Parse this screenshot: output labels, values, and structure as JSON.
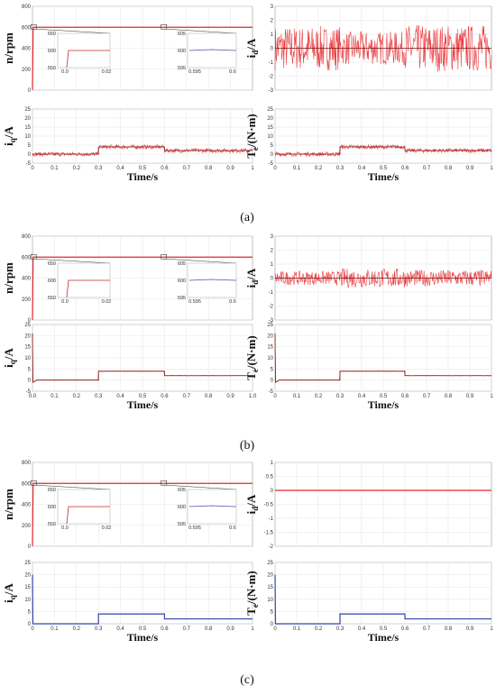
{
  "captions": [
    "(a)",
    "(b)",
    "(c)"
  ],
  "chart_data": [
    {
      "type": "line",
      "ylabel": "n/rpm",
      "xlabel": "",
      "xlim": [
        0,
        1
      ],
      "ylim": [
        0,
        800
      ],
      "yticks": [
        0,
        200,
        400,
        600,
        800
      ],
      "xticks": [],
      "grid": true,
      "series": [
        {
          "color": "#e8262a",
          "x": [
            0,
            0.003,
            0.01,
            1.0
          ],
          "y": [
            0,
            600,
            600,
            600
          ]
        }
      ],
      "insets": [
        {
          "ylim": [
            550,
            650
          ],
          "yticks": [
            550,
            600,
            650
          ],
          "xticks": [
            "0.0",
            "0.02"
          ],
          "y": 600
        },
        {
          "ylim": [
            595,
            605
          ],
          "yticks": [
            595,
            600,
            605
          ],
          "xticks": [
            "0.595",
            "0.6"
          ],
          "y": 600
        }
      ]
    },
    {
      "type": "line",
      "ylabel": "id/A",
      "xlabel": "",
      "xlim": [
        0,
        1
      ],
      "ylim": [
        -3,
        3
      ],
      "yticks": [
        -3,
        -2,
        -1,
        0,
        1,
        2,
        3
      ],
      "xticks": [],
      "grid": true,
      "series": [
        {
          "color": "#e8262a",
          "x": [
            0,
            0.3,
            0.3,
            0.6,
            0.6,
            1
          ],
          "y": [
            0,
            0,
            0,
            0,
            0,
            0
          ],
          "noise": [
            1.6,
            1.6,
            1.2,
            1.2,
            1.7,
            1.7
          ]
        }
      ]
    },
    {
      "type": "line",
      "ylabel": "iq/A",
      "xlabel": "Time/s",
      "xlim": [
        0,
        1
      ],
      "ylim": [
        -5,
        25
      ],
      "yticks": [
        -5,
        0,
        5,
        10,
        15,
        20,
        25
      ],
      "xticks": [
        0,
        0.1,
        0.2,
        0.3,
        0.4,
        0.5,
        0.6,
        0.7,
        0.8,
        0.9,
        1
      ],
      "grid": true,
      "series": [
        {
          "color": "#e8262a",
          "x": [
            0,
            0.3,
            0.3,
            0.6,
            0.6,
            1
          ],
          "y": [
            0,
            0,
            4,
            4,
            2,
            2
          ],
          "noise": [
            1.2,
            1.2,
            1.2,
            1.2,
            1.2,
            1.2
          ]
        }
      ]
    },
    {
      "type": "line",
      "ylabel": "Te/(N·m)",
      "xlabel": "Time/s",
      "xlim": [
        0,
        1
      ],
      "ylim": [
        -5,
        25
      ],
      "yticks": [
        -5,
        0,
        5,
        10,
        15,
        20,
        25
      ],
      "xticks": [
        0,
        0.1,
        0.2,
        0.3,
        0.4,
        0.5,
        0.6,
        0.7,
        0.8,
        0.9,
        1
      ],
      "grid": true,
      "series": [
        {
          "color": "#e8262a",
          "x": [
            0,
            0.3,
            0.3,
            0.6,
            0.6,
            1
          ],
          "y": [
            0,
            0,
            4,
            4,
            2,
            2
          ],
          "noise": [
            1.2,
            1.2,
            1.2,
            1.2,
            1.2,
            1.2
          ]
        }
      ]
    },
    {
      "type": "line",
      "ylabel": "n/rpm",
      "xlabel": "",
      "xlim": [
        0,
        1
      ],
      "ylim": [
        0,
        800
      ],
      "yticks": [
        0,
        200,
        400,
        600,
        800
      ],
      "xticks": [],
      "grid": true,
      "series": [
        {
          "color": "#e8262a",
          "x": [
            0,
            0.003,
            0.01,
            1.0
          ],
          "y": [
            0,
            600,
            600,
            600
          ]
        }
      ],
      "insets": [
        {
          "ylim": [
            550,
            650
          ],
          "yticks": [
            550,
            600,
            650
          ],
          "xticks": [
            "0.0",
            "0.02"
          ],
          "y": 600
        },
        {
          "ylim": [
            595,
            605
          ],
          "yticks": [
            595,
            600,
            605
          ],
          "xticks": [
            "0.595",
            "0.6"
          ],
          "y": 600
        }
      ]
    },
    {
      "type": "line",
      "ylabel": "id/A",
      "xlabel": "",
      "xlim": [
        0,
        1
      ],
      "ylim": [
        -3,
        3
      ],
      "yticks": [
        -3,
        -2,
        -1,
        0,
        1,
        2,
        3
      ],
      "xticks": [],
      "grid": true,
      "series": [
        {
          "color": "#e8262a",
          "x": [
            0,
            0.3,
            0.3,
            0.6,
            0.6,
            1
          ],
          "y": [
            0,
            0,
            0,
            0,
            0,
            0
          ],
          "noise": [
            0.5,
            0.5,
            0.7,
            0.7,
            0.6,
            0.6
          ]
        }
      ]
    },
    {
      "type": "line",
      "ylabel": "iq/A",
      "xlabel": "Time/s",
      "xlim": [
        0,
        1
      ],
      "ylim": [
        -5,
        25
      ],
      "yticks": [
        -5,
        0,
        5,
        10,
        15,
        20,
        25
      ],
      "xticks": [
        0.0,
        0.1,
        0.2,
        0.3,
        0.4,
        0.5,
        0.6,
        0.7,
        0.8,
        0.9,
        1.0
      ],
      "xtick_decimals": 1,
      "grid": true,
      "series": [
        {
          "color": "#e8262a",
          "x": [
            0,
            0.002,
            0.02,
            0.3,
            0.3,
            0.6,
            0.6,
            1
          ],
          "y": [
            21,
            -1,
            0,
            0,
            4,
            4,
            2,
            2
          ],
          "noise": [
            0.1,
            0.1,
            0.1,
            0.1,
            0.1,
            0.1,
            0.1,
            0.1
          ]
        }
      ]
    },
    {
      "type": "line",
      "ylabel": "Te/(N·m)",
      "xlabel": "Time/s",
      "xlim": [
        0,
        1
      ],
      "ylim": [
        -5,
        25
      ],
      "yticks": [
        -5,
        0,
        5,
        10,
        15,
        20,
        25
      ],
      "xticks": [
        0,
        0.1,
        0.2,
        0.3,
        0.4,
        0.5,
        0.6,
        0.7,
        0.8,
        0.9,
        1
      ],
      "grid": true,
      "series": [
        {
          "color": "#e8262a",
          "x": [
            0,
            0.002,
            0.02,
            0.3,
            0.3,
            0.6,
            0.6,
            1
          ],
          "y": [
            21,
            -1,
            0,
            0,
            4,
            4,
            2,
            2
          ],
          "noise": [
            0.1,
            0.1,
            0.1,
            0.1,
            0.1,
            0.1,
            0.1,
            0.1
          ]
        }
      ]
    },
    {
      "type": "line",
      "ylabel": "n/rpm",
      "xlabel": "",
      "xlim": [
        0,
        1
      ],
      "ylim": [
        0,
        800
      ],
      "yticks": [
        0,
        200,
        400,
        600,
        800
      ],
      "xticks": [],
      "grid": true,
      "series": [
        {
          "color": "#e8262a",
          "x": [
            0,
            0.003,
            0.01,
            1.0
          ],
          "y": [
            0,
            600,
            600,
            600
          ]
        }
      ],
      "insets": [
        {
          "ylim": [
            550,
            650
          ],
          "yticks": [
            550,
            600,
            650
          ],
          "xticks": [
            "0.0",
            "0.02"
          ],
          "y": 600
        },
        {
          "ylim": [
            595,
            605
          ],
          "yticks": [
            595,
            600,
            605
          ],
          "xticks": [
            "0.595",
            "0.6"
          ],
          "y": 600
        }
      ]
    },
    {
      "type": "line",
      "ylabel": "id/A",
      "xlabel": "",
      "xlim": [
        0,
        1
      ],
      "ylim": [
        -2,
        1
      ],
      "yticks": [
        -2,
        -1.5,
        -1,
        -0.5,
        0,
        0.5,
        1
      ],
      "xticks": [],
      "grid": true,
      "series": [
        {
          "color": "#e8262a",
          "x": [
            0,
            1
          ],
          "y": [
            0,
            0
          ]
        }
      ]
    },
    {
      "type": "line",
      "ylabel": "iq/A",
      "xlabel": "Time/s",
      "xlim": [
        0,
        1
      ],
      "ylim": [
        0,
        25
      ],
      "yticks": [
        0,
        5,
        10,
        15,
        20,
        25
      ],
      "xticks": [
        0,
        0.1,
        0.2,
        0.3,
        0.4,
        0.5,
        0.6,
        0.7,
        0.8,
        0.9,
        1
      ],
      "grid": true,
      "series": [
        {
          "color": "#3344aa",
          "x": [
            0,
            0.002,
            0.004,
            0.3,
            0.3,
            0.6,
            0.6,
            1
          ],
          "y": [
            20,
            0,
            0,
            0,
            4,
            4,
            2,
            2
          ]
        }
      ]
    },
    {
      "type": "line",
      "ylabel": "Te/(N·m)",
      "xlabel": "Time/s",
      "xlim": [
        0,
        1
      ],
      "ylim": [
        0,
        25
      ],
      "yticks": [
        0,
        5,
        10,
        15,
        20,
        25
      ],
      "xticks": [
        0,
        0.1,
        0.2,
        0.3,
        0.4,
        0.5,
        0.6,
        0.7,
        0.8,
        0.9,
        1
      ],
      "grid": true,
      "series": [
        {
          "color": "#3344aa",
          "x": [
            0,
            0.002,
            0.004,
            0.3,
            0.3,
            0.6,
            0.6,
            1
          ],
          "y": [
            20,
            0,
            0,
            0,
            4,
            4,
            2,
            2
          ]
        }
      ]
    }
  ]
}
